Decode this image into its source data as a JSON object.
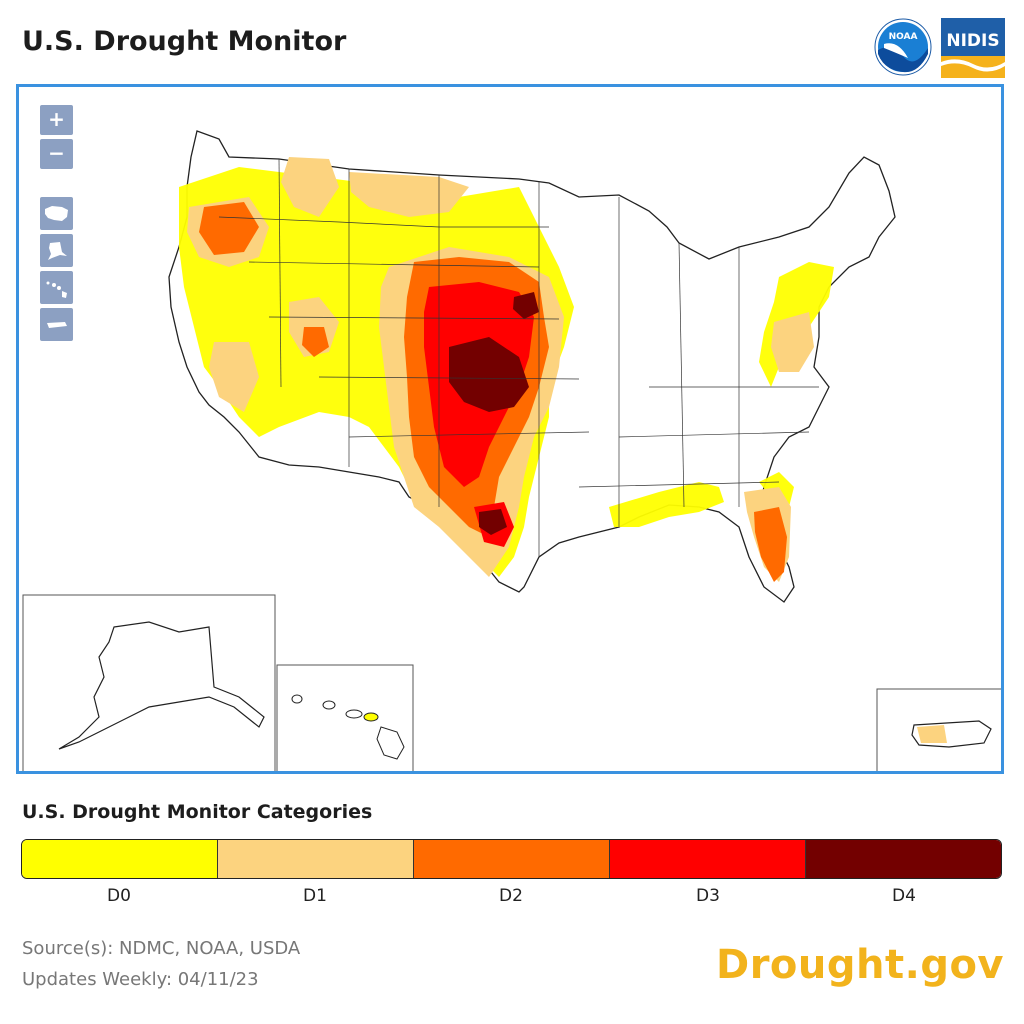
{
  "header": {
    "title": "U.S. Drought Monitor",
    "logos": {
      "noaa_text": "NOAA",
      "nidis_text": "NIDIS"
    }
  },
  "map": {
    "controls": {
      "zoom_in": "+",
      "zoom_out": "−",
      "view_icons": [
        "contiguous-us-icon",
        "alaska-icon",
        "hawaii-icon",
        "puerto-rico-icon"
      ]
    },
    "insets": [
      "Alaska",
      "Hawaii",
      "Puerto Rico"
    ]
  },
  "legend": {
    "title": "U.S. Drought Monitor Categories",
    "categories": [
      {
        "label": "D0",
        "color": "#ffff00"
      },
      {
        "label": "D1",
        "color": "#fcd37f"
      },
      {
        "label": "D2",
        "color": "#ff6a00"
      },
      {
        "label": "D3",
        "color": "#ff0000"
      },
      {
        "label": "D4",
        "color": "#730000"
      }
    ]
  },
  "footer": {
    "source": "Source(s): NDMC, NOAA, USDA",
    "updates": "Updates Weekly: 04/11/23",
    "brand": "Drought.gov"
  }
}
